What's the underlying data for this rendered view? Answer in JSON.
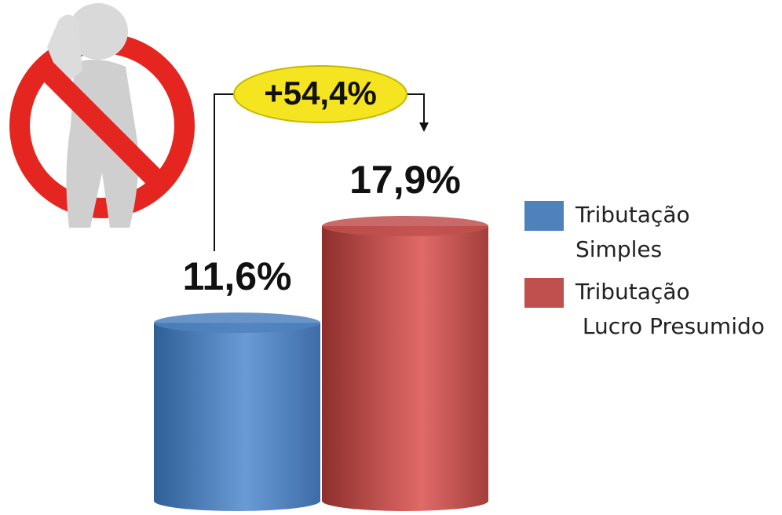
{
  "chart_data": {
    "type": "bar",
    "annotation": "+54,4%",
    "series": [
      {
        "name": "Tributação Simples",
        "color": "#4f81bd",
        "values": [
          11.6
        ],
        "value_labels": [
          "11,6%"
        ]
      },
      {
        "name": "Tributação Lucro Presumido",
        "color": "#c0504d",
        "values": [
          17.9
        ],
        "value_labels": [
          "17,9%"
        ]
      }
    ]
  }
}
